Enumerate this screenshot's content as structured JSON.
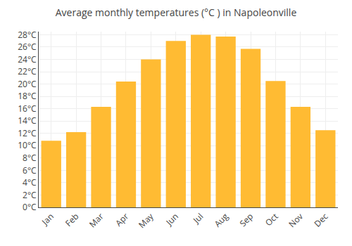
{
  "chart_data": {
    "type": "bar",
    "title": "Average monthly temperatures (°C ) in Napoleonville",
    "categories": [
      "Jan",
      "Feb",
      "Mar",
      "Apr",
      "May",
      "Jun",
      "Jul",
      "Aug",
      "Sep",
      "Oct",
      "Nov",
      "Dec"
    ],
    "values": [
      10.8,
      12.2,
      16.3,
      20.4,
      24.0,
      27.0,
      28.0,
      27.7,
      25.7,
      20.5,
      16.3,
      12.5
    ],
    "color": "#FFBB33",
    "ylim": [
      0,
      28.5
    ],
    "yticks": [
      {
        "value": 0,
        "label": "0°C"
      },
      {
        "value": 2,
        "label": "2°C"
      },
      {
        "value": 4,
        "label": "4°C"
      },
      {
        "value": 6,
        "label": "6°C"
      },
      {
        "value": 8,
        "label": "8°C"
      },
      {
        "value": 10,
        "label": "10°C"
      },
      {
        "value": 12,
        "label": "12°C"
      },
      {
        "value": 14,
        "label": "14°C"
      },
      {
        "value": 16,
        "label": "16°C"
      },
      {
        "value": 18,
        "label": "18°C"
      },
      {
        "value": 20,
        "label": "20°C"
      },
      {
        "value": 22,
        "label": "22°C"
      },
      {
        "value": 24,
        "label": "24°C"
      },
      {
        "value": 26,
        "label": "26°C"
      },
      {
        "value": 28,
        "label": "28°C"
      }
    ],
    "grid": true
  }
}
